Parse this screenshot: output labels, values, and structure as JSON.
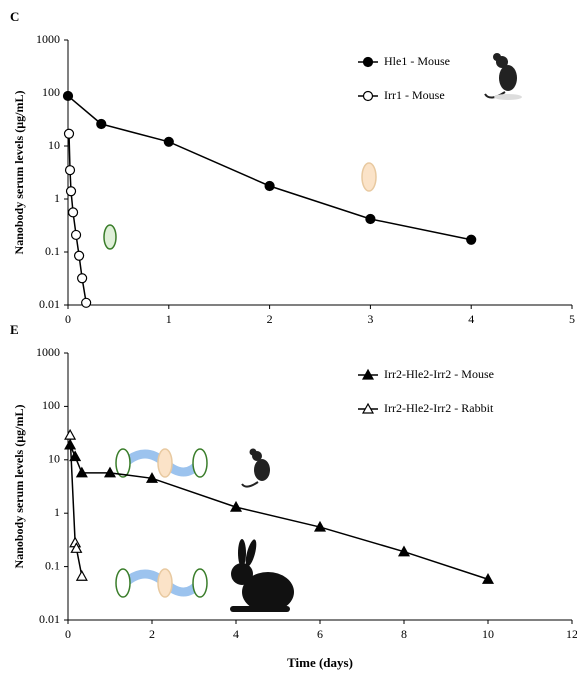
{
  "chart_data": [
    {
      "type": "line",
      "panel": "C",
      "ylabel": "Nanobody serum levels (µg/mL)",
      "xlim": [
        0,
        5
      ],
      "xticks": [
        0,
        1,
        2,
        3,
        4,
        5
      ],
      "ylim": [
        0.01,
        1000
      ],
      "yticks": [
        0.01,
        0.1,
        1,
        10,
        100,
        1000
      ],
      "log_y": true,
      "legend_position": "upper right",
      "series": [
        {
          "name": "Hle1 - Mouse",
          "color": "#000000",
          "marker": "circle",
          "filled": true,
          "x": [
            0,
            0.33,
            1,
            2,
            3,
            4
          ],
          "values": [
            88,
            26,
            12,
            1.76,
            0.42,
            0.17
          ]
        },
        {
          "name": "Irr1 - Mouse",
          "color": "#000000",
          "marker": "circle",
          "filled": false,
          "x": [
            0.01,
            0.02,
            0.03,
            0.05,
            0.08,
            0.11,
            0.14,
            0.18
          ],
          "values": [
            17,
            3.5,
            1.4,
            0.56,
            0.21,
            0.085,
            0.032,
            0.011
          ]
        }
      ]
    },
    {
      "type": "line",
      "panel": "E",
      "ylabel": "Nanobody serum levels (µg/mL)",
      "xlabel": "Time (days)",
      "xlim": [
        0,
        12
      ],
      "xticks": [
        0,
        2,
        4,
        6,
        8,
        10,
        12
      ],
      "ylim": [
        0.01,
        1000
      ],
      "yticks": [
        0.01,
        0.1,
        1,
        10,
        100,
        1000
      ],
      "log_y": true,
      "legend_position": "upper right",
      "series": [
        {
          "name": "Irr2-Hle2-Irr2 - Mouse",
          "color": "#000000",
          "marker": "triangle",
          "filled": true,
          "x": [
            0.05,
            0.17,
            0.33,
            1,
            2,
            4,
            6,
            8,
            10
          ],
          "values": [
            19,
            11.5,
            5.7,
            5.7,
            4.5,
            1.3,
            0.55,
            0.19,
            0.058
          ]
        },
        {
          "name": "Irr2-Hle2-Irr2 - Rabbit",
          "color": "#000000",
          "marker": "triangle",
          "filled": false,
          "x": [
            0.05,
            0.17,
            0.2,
            0.33
          ],
          "values": [
            29,
            0.28,
            0.22,
            0.066
          ]
        }
      ]
    }
  ]
}
